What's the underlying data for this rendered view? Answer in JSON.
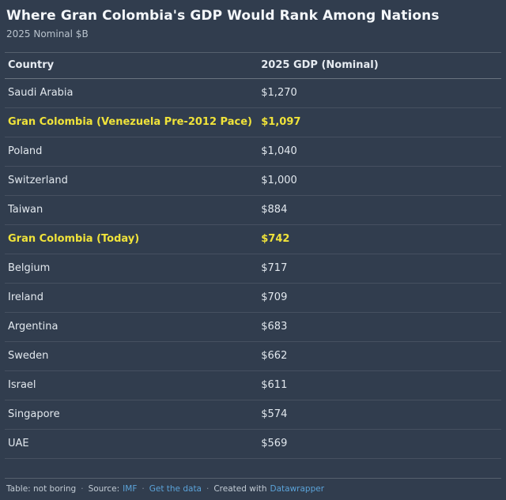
{
  "header": {
    "title": "Where Gran Colombia's GDP Would Rank Among Nations",
    "subtitle": "2025 Nominal $B"
  },
  "table": {
    "columns": {
      "country": "Country",
      "gdp": "2025 GDP (Nominal)"
    },
    "rows": [
      {
        "country": "Saudi Arabia",
        "gdp": "$1,270",
        "highlight": false
      },
      {
        "country": "Gran Colombia (Venezuela Pre-2012 Pace)",
        "gdp": "$1,097",
        "highlight": true
      },
      {
        "country": "Poland",
        "gdp": "$1,040",
        "highlight": false
      },
      {
        "country": "Switzerland",
        "gdp": "$1,000",
        "highlight": false
      },
      {
        "country": "Taiwan",
        "gdp": "$884",
        "highlight": false
      },
      {
        "country": "Gran Colombia (Today)",
        "gdp": "$742",
        "highlight": true
      },
      {
        "country": "Belgium",
        "gdp": "$717",
        "highlight": false
      },
      {
        "country": "Ireland",
        "gdp": "$709",
        "highlight": false
      },
      {
        "country": "Argentina",
        "gdp": "$683",
        "highlight": false
      },
      {
        "country": "Sweden",
        "gdp": "$662",
        "highlight": false
      },
      {
        "country": "Israel",
        "gdp": "$611",
        "highlight": false
      },
      {
        "country": "Singapore",
        "gdp": "$574",
        "highlight": false
      },
      {
        "country": "UAE",
        "gdp": "$569",
        "highlight": false
      }
    ]
  },
  "footer": {
    "credit": "Table: not boring",
    "source_label": "Source:",
    "source_link": "IMF",
    "get_data_link": "Get the data",
    "created_label": "Created with",
    "created_link": "Datawrapper",
    "separator": "·"
  },
  "colors": {
    "background": "#313d4e",
    "highlight_yellow": "#f0e33a",
    "link_blue": "#5ba3d9",
    "text": "#e2e8ee"
  },
  "chart_data": {
    "type": "table",
    "title": "Where Gran Colombia's GDP Would Rank Among Nations",
    "subtitle": "2025 Nominal $B",
    "columns": [
      "Country",
      "2025 GDP (Nominal)"
    ],
    "categories": [
      "Saudi Arabia",
      "Gran Colombia (Venezuela Pre-2012 Pace)",
      "Poland",
      "Switzerland",
      "Taiwan",
      "Gran Colombia (Today)",
      "Belgium",
      "Ireland",
      "Argentina",
      "Sweden",
      "Israel",
      "Singapore",
      "UAE"
    ],
    "values": [
      1270,
      1097,
      1040,
      1000,
      884,
      742,
      717,
      709,
      683,
      662,
      611,
      574,
      569
    ],
    "units": "USD billions, nominal, 2025",
    "highlighted_rows": [
      "Gran Colombia (Venezuela Pre-2012 Pace)",
      "Gran Colombia (Today)"
    ],
    "source": "IMF"
  }
}
